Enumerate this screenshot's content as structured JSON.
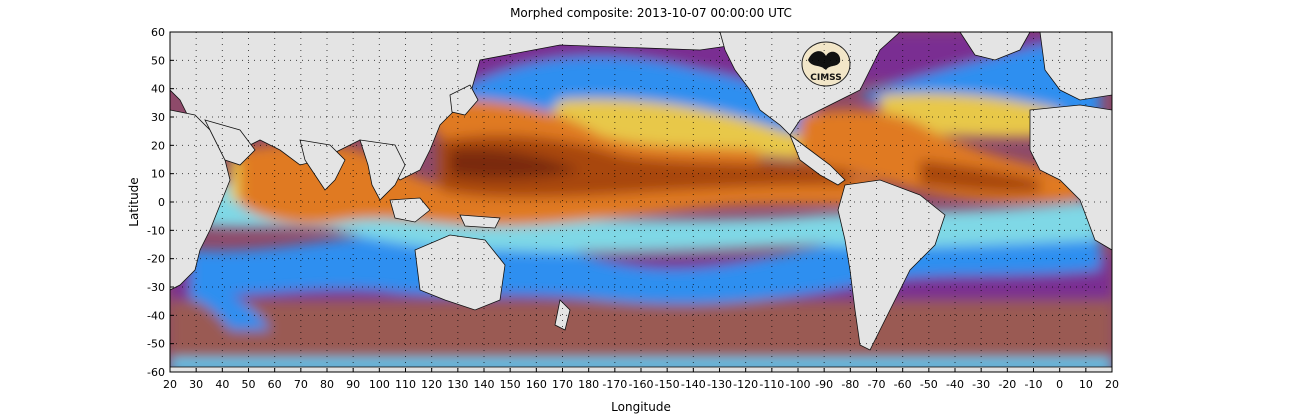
{
  "title": "Morphed composite: 2013-10-07 00:00:00 UTC",
  "logo_text": "CIMSS",
  "axes": {
    "xlabel": "Longitude",
    "ylabel": "Latitude",
    "x_ticks": [
      "20",
      "30",
      "40",
      "50",
      "60",
      "70",
      "80",
      "90",
      "100",
      "110",
      "120",
      "130",
      "140",
      "150",
      "160",
      "170",
      "180",
      "-170",
      "-160",
      "-150",
      "-140",
      "-130",
      "-120",
      "-110",
      "-100",
      "-90",
      "-80",
      "-70",
      "-60",
      "-50",
      "-40",
      "-30",
      "-20",
      "-10",
      "0",
      "10",
      "20"
    ],
    "y_ticks": [
      "60",
      "50",
      "40",
      "30",
      "20",
      "10",
      "0",
      "-10",
      "-20",
      "-30",
      "-40",
      "-50",
      "-60"
    ],
    "x_range": [
      20,
      380
    ],
    "y_range": [
      -60,
      60
    ],
    "grid": "dotted"
  },
  "colors": {
    "land": "#e4e4e4",
    "coast": "#111111",
    "dry": "#7a2d92",
    "very_dry_south": "#9a5a52",
    "mid_blue": "#2f8ff0",
    "cyan": "#7fd8e6",
    "yellow": "#e8c84a",
    "orange": "#e07a22",
    "moist": "#a8460f",
    "very_moist": "#7a2a08",
    "antarctic": "#58c8f0"
  }
}
